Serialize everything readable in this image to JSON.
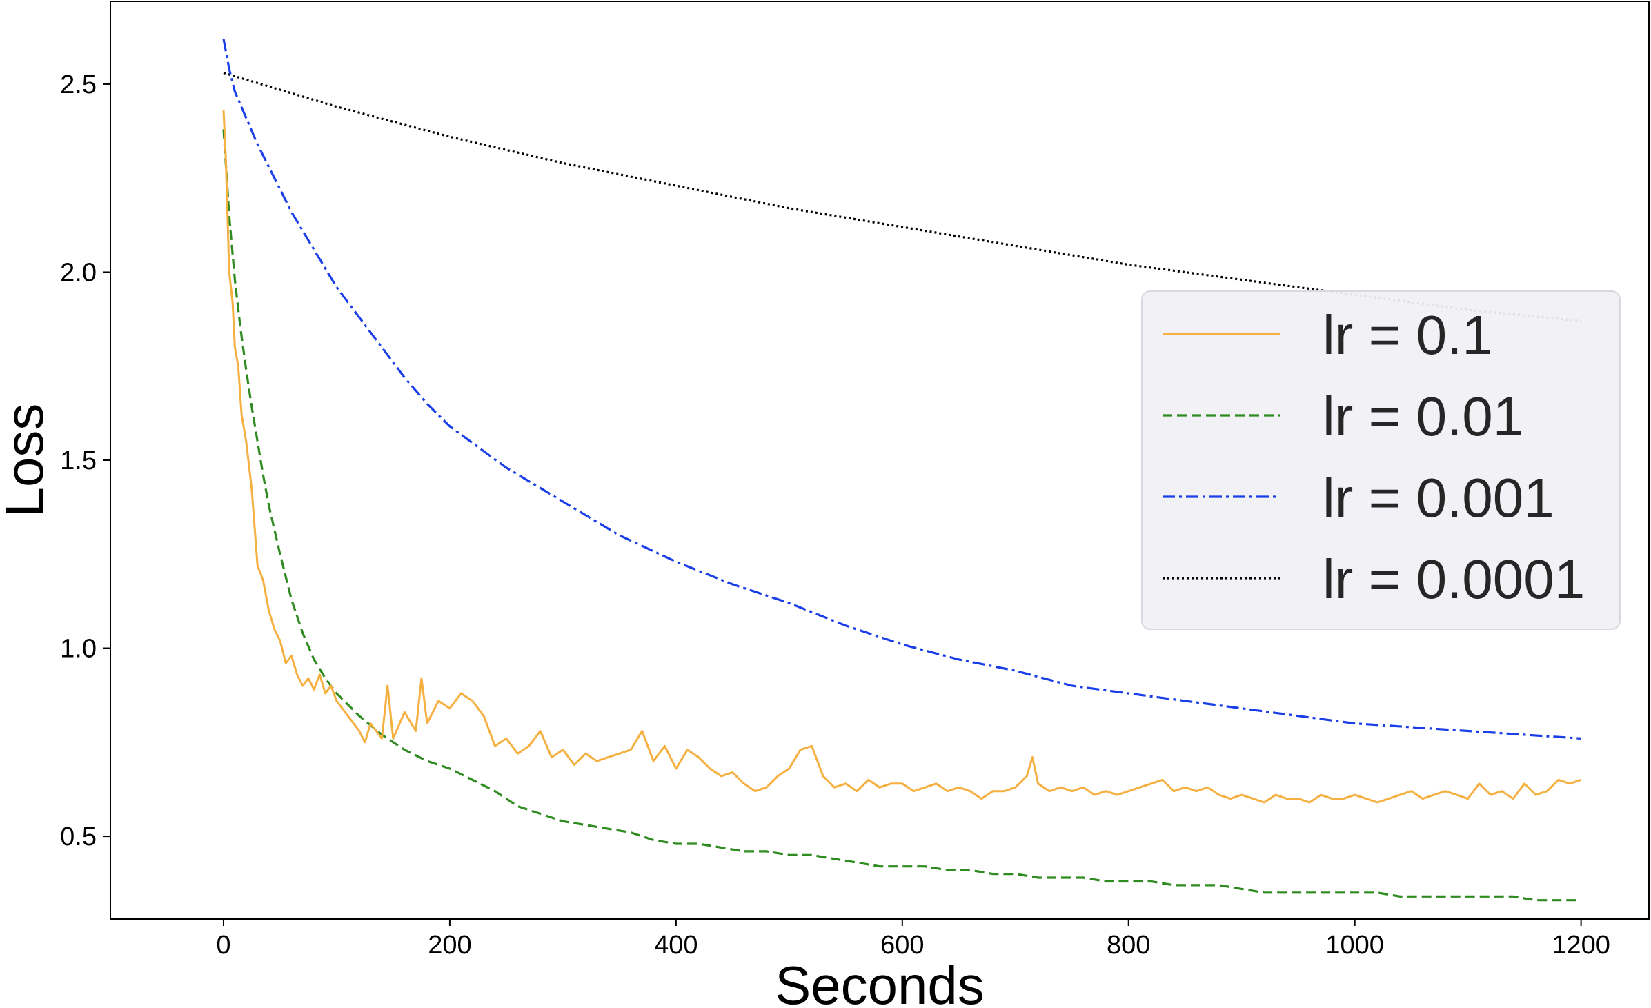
{
  "chart_data": {
    "type": "line",
    "title": "",
    "xlabel": "Seconds",
    "ylabel": "Loss",
    "xlim": [
      -100,
      1260
    ],
    "ylim": [
      0.28,
      2.72
    ],
    "xticks": [
      0,
      200,
      400,
      600,
      800,
      1000,
      1200
    ],
    "xtick_labels": [
      "0",
      "200",
      "400",
      "600",
      "800",
      "1000",
      "1200"
    ],
    "yticks": [
      0.5,
      1.0,
      1.5,
      2.0,
      2.5
    ],
    "ytick_labels": [
      "0.5",
      "1.0",
      "1.5",
      "2.0",
      "2.5"
    ],
    "grid": false,
    "legend_position": "center-right",
    "series": [
      {
        "name": "lr = 0.1",
        "color": "#f5b041",
        "dash": "solid",
        "x": [
          0,
          2,
          5,
          8,
          10,
          13,
          16,
          20,
          25,
          30,
          35,
          40,
          45,
          50,
          55,
          60,
          65,
          70,
          75,
          80,
          85,
          90,
          95,
          100,
          110,
          120,
          125,
          130,
          140,
          145,
          150,
          160,
          170,
          175,
          180,
          190,
          200,
          210,
          220,
          230,
          240,
          250,
          260,
          270,
          280,
          290,
          300,
          310,
          320,
          330,
          340,
          350,
          360,
          370,
          380,
          390,
          400,
          410,
          420,
          430,
          440,
          450,
          460,
          470,
          480,
          490,
          500,
          510,
          520,
          530,
          540,
          550,
          560,
          570,
          580,
          590,
          600,
          610,
          620,
          630,
          640,
          650,
          660,
          670,
          680,
          690,
          700,
          710,
          715,
          720,
          730,
          740,
          750,
          760,
          770,
          780,
          790,
          800,
          810,
          820,
          830,
          840,
          850,
          860,
          870,
          880,
          890,
          900,
          910,
          920,
          930,
          940,
          950,
          960,
          970,
          980,
          990,
          1000,
          1010,
          1020,
          1030,
          1040,
          1050,
          1060,
          1070,
          1080,
          1090,
          1100,
          1110,
          1120,
          1130,
          1140,
          1150,
          1160,
          1170,
          1180,
          1190,
          1200
        ],
        "y": [
          2.43,
          2.3,
          2.0,
          1.92,
          1.8,
          1.75,
          1.62,
          1.55,
          1.42,
          1.22,
          1.18,
          1.1,
          1.05,
          1.02,
          0.96,
          0.98,
          0.93,
          0.9,
          0.92,
          0.89,
          0.93,
          0.88,
          0.9,
          0.86,
          0.82,
          0.78,
          0.75,
          0.8,
          0.76,
          0.9,
          0.76,
          0.83,
          0.78,
          0.92,
          0.8,
          0.86,
          0.84,
          0.88,
          0.86,
          0.82,
          0.74,
          0.76,
          0.72,
          0.74,
          0.78,
          0.71,
          0.73,
          0.69,
          0.72,
          0.7,
          0.71,
          0.72,
          0.73,
          0.78,
          0.7,
          0.74,
          0.68,
          0.73,
          0.71,
          0.68,
          0.66,
          0.67,
          0.64,
          0.62,
          0.63,
          0.66,
          0.68,
          0.73,
          0.74,
          0.66,
          0.63,
          0.64,
          0.62,
          0.65,
          0.63,
          0.64,
          0.64,
          0.62,
          0.63,
          0.64,
          0.62,
          0.63,
          0.62,
          0.6,
          0.62,
          0.62,
          0.63,
          0.66,
          0.71,
          0.64,
          0.62,
          0.63,
          0.62,
          0.63,
          0.61,
          0.62,
          0.61,
          0.62,
          0.63,
          0.64,
          0.65,
          0.62,
          0.63,
          0.62,
          0.63,
          0.61,
          0.6,
          0.61,
          0.6,
          0.59,
          0.61,
          0.6,
          0.6,
          0.59,
          0.61,
          0.6,
          0.6,
          0.61,
          0.6,
          0.59,
          0.6,
          0.61,
          0.62,
          0.6,
          0.61,
          0.62,
          0.61,
          0.6,
          0.64,
          0.61,
          0.62,
          0.6,
          0.64,
          0.61,
          0.62,
          0.65,
          0.64,
          0.65
        ]
      },
      {
        "name": "lr = 0.01",
        "color": "#2e8b1f",
        "dash": "dashed",
        "x": [
          0,
          5,
          10,
          15,
          20,
          25,
          30,
          35,
          40,
          50,
          60,
          70,
          80,
          90,
          100,
          120,
          140,
          160,
          180,
          200,
          220,
          240,
          260,
          280,
          300,
          320,
          340,
          360,
          380,
          400,
          420,
          440,
          460,
          480,
          500,
          520,
          540,
          560,
          580,
          600,
          620,
          640,
          660,
          680,
          700,
          720,
          740,
          760,
          780,
          800,
          820,
          840,
          860,
          880,
          900,
          920,
          940,
          960,
          980,
          1000,
          1020,
          1040,
          1060,
          1080,
          1100,
          1120,
          1140,
          1160,
          1180,
          1200
        ],
        "y": [
          2.38,
          2.15,
          1.98,
          1.85,
          1.74,
          1.64,
          1.55,
          1.46,
          1.38,
          1.25,
          1.13,
          1.04,
          0.97,
          0.92,
          0.88,
          0.82,
          0.77,
          0.73,
          0.7,
          0.68,
          0.65,
          0.62,
          0.58,
          0.56,
          0.54,
          0.53,
          0.52,
          0.51,
          0.49,
          0.48,
          0.48,
          0.47,
          0.46,
          0.46,
          0.45,
          0.45,
          0.44,
          0.43,
          0.42,
          0.42,
          0.42,
          0.41,
          0.41,
          0.4,
          0.4,
          0.39,
          0.39,
          0.39,
          0.38,
          0.38,
          0.38,
          0.37,
          0.37,
          0.37,
          0.36,
          0.35,
          0.35,
          0.35,
          0.35,
          0.35,
          0.35,
          0.34,
          0.34,
          0.34,
          0.34,
          0.34,
          0.34,
          0.33,
          0.33,
          0.33
        ]
      },
      {
        "name": "lr = 0.001",
        "color": "#1a3ee8",
        "dash": "dashdot",
        "x": [
          0,
          5,
          10,
          20,
          30,
          40,
          50,
          60,
          80,
          100,
          120,
          140,
          160,
          180,
          200,
          250,
          300,
          350,
          400,
          450,
          500,
          550,
          600,
          650,
          700,
          750,
          800,
          850,
          900,
          950,
          1000,
          1050,
          1100,
          1150,
          1200
        ],
        "y": [
          2.62,
          2.54,
          2.48,
          2.41,
          2.34,
          2.28,
          2.22,
          2.16,
          2.06,
          1.96,
          1.88,
          1.8,
          1.72,
          1.65,
          1.59,
          1.48,
          1.39,
          1.3,
          1.23,
          1.17,
          1.12,
          1.06,
          1.01,
          0.97,
          0.94,
          0.9,
          0.88,
          0.86,
          0.84,
          0.82,
          0.8,
          0.79,
          0.78,
          0.77,
          0.76
        ]
      },
      {
        "name": "lr = 0.0001",
        "color": "#000000",
        "dash": "dotted",
        "x": [
          0,
          100,
          200,
          300,
          400,
          500,
          600,
          700,
          800,
          900,
          1000,
          1100,
          1200
        ],
        "y": [
          2.53,
          2.44,
          2.36,
          2.29,
          2.23,
          2.17,
          2.12,
          2.07,
          2.02,
          1.98,
          1.94,
          1.9,
          1.87
        ]
      }
    ]
  }
}
